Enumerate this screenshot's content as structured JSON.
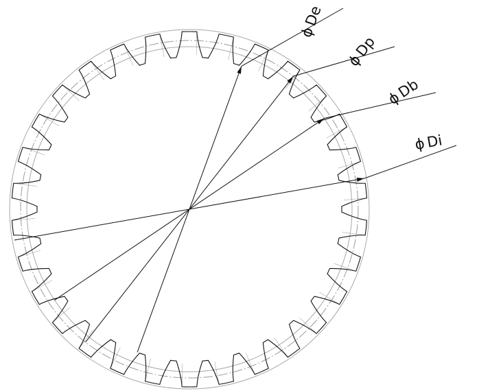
{
  "drawing": {
    "teeth_count": 30,
    "colors": {
      "line": "#111111",
      "reference_circle": "#a8a8a8",
      "centerline": "#9a9a9a",
      "background": "#ffffff"
    },
    "dimensions": [
      {
        "symbol": "ϕ",
        "name": "De"
      },
      {
        "symbol": "ϕ",
        "name": "Dp"
      },
      {
        "symbol": "ϕ",
        "name": "Db"
      },
      {
        "symbol": "ϕ",
        "name": "Di"
      }
    ]
  }
}
